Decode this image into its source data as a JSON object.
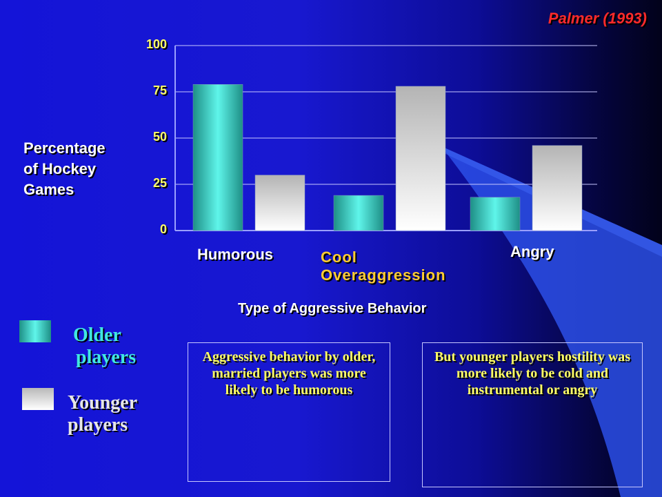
{
  "citation": "Palmer  (1993)",
  "colors": {
    "older": "#40e0d8",
    "younger": "#d8d8d8",
    "axis_tick_text": "#ffff66",
    "highlight_category": "#ffcc33",
    "note_text": "#ffff66",
    "citation": "#ff2a2a"
  },
  "chart_data": {
    "type": "bar",
    "ylabel": "Percentage of Hockey Games",
    "ylabel_lines": [
      "Percentage",
      "of Hockey",
      "Games"
    ],
    "xlabel": "Type of Aggressive Behavior",
    "categories": [
      "Humorous",
      "Cool Overaggression",
      "Angry"
    ],
    "category_lines": [
      [
        "Humorous"
      ],
      [
        "Cool",
        "Overaggression"
      ],
      [
        "Angry"
      ]
    ],
    "series": [
      {
        "name": "Older players",
        "values": [
          79,
          19,
          18
        ]
      },
      {
        "name": "Younger players",
        "values": [
          30,
          78,
          46
        ]
      }
    ],
    "ylim": [
      0,
      100
    ],
    "yticks": [
      0,
      25,
      50,
      75,
      100
    ],
    "grid": true,
    "legend_position": "bottom-left"
  },
  "legend": {
    "older": [
      "Older",
      "players"
    ],
    "younger": [
      "Younger",
      "players"
    ]
  },
  "notes": {
    "left": "Aggressive behavior by older, married players was more likely to be humorous",
    "right": "But younger players hostility was more likely to be cold and instrumental or angry"
  }
}
